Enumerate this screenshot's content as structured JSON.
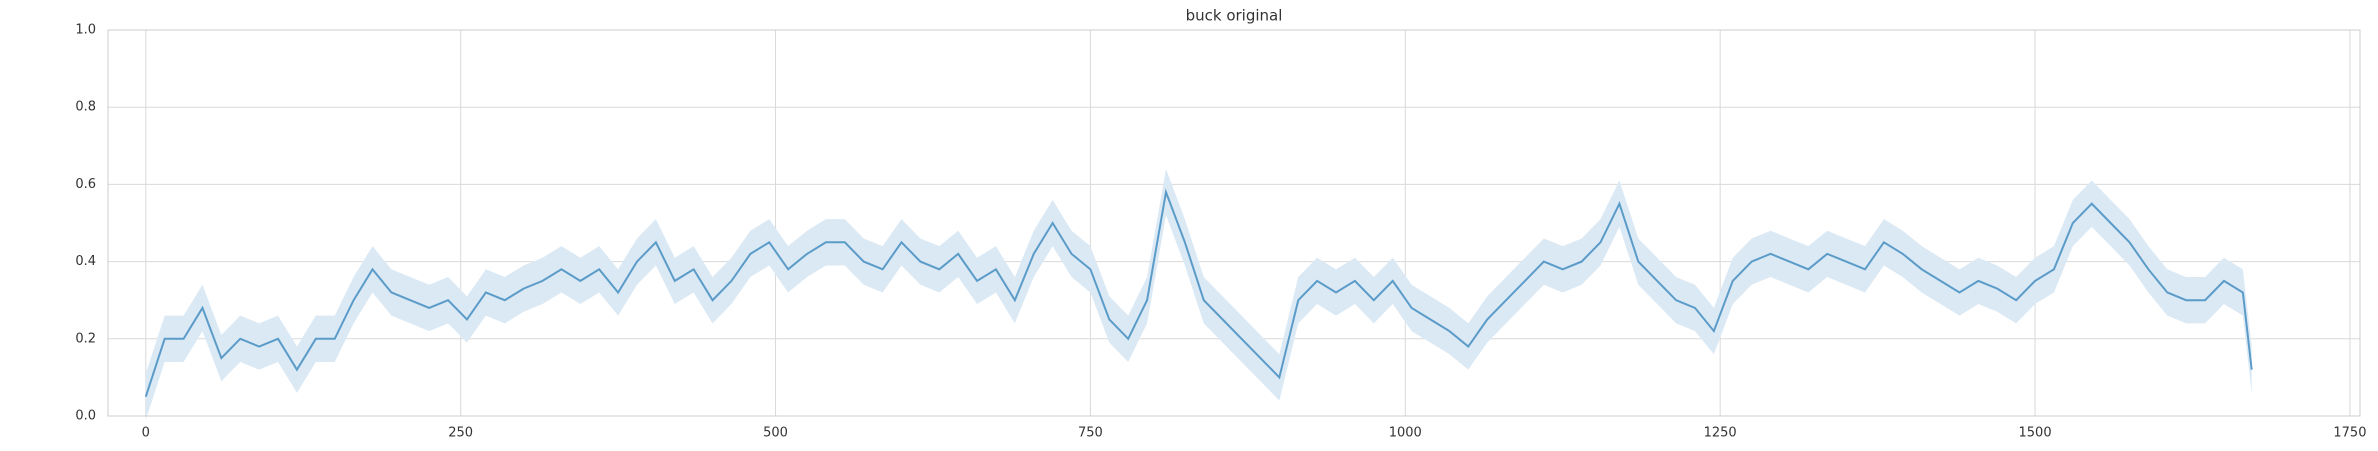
{
  "chart_data": {
    "type": "line",
    "title": "buck original",
    "x": [
      0,
      15,
      30,
      45,
      60,
      75,
      90,
      105,
      120,
      135,
      150,
      165,
      180,
      195,
      210,
      225,
      240,
      255,
      270,
      285,
      300,
      315,
      330,
      345,
      360,
      375,
      390,
      405,
      420,
      435,
      450,
      465,
      480,
      495,
      510,
      525,
      540,
      555,
      570,
      585,
      600,
      615,
      630,
      645,
      660,
      675,
      690,
      705,
      720,
      735,
      750,
      765,
      780,
      795,
      810,
      825,
      840,
      855,
      870,
      885,
      900,
      915,
      930,
      945,
      960,
      975,
      990,
      1005,
      1020,
      1035,
      1050,
      1065,
      1080,
      1095,
      1110,
      1125,
      1140,
      1155,
      1170,
      1185,
      1200,
      1215,
      1230,
      1245,
      1260,
      1275,
      1290,
      1305,
      1320,
      1335,
      1350,
      1365,
      1380,
      1395,
      1410,
      1425,
      1440,
      1455,
      1470,
      1485,
      1500,
      1515,
      1530,
      1545,
      1560,
      1575,
      1590,
      1605,
      1620,
      1635,
      1650,
      1665,
      1672
    ],
    "values": [
      0.05,
      0.2,
      0.2,
      0.28,
      0.15,
      0.2,
      0.18,
      0.2,
      0.12,
      0.2,
      0.2,
      0.3,
      0.38,
      0.32,
      0.3,
      0.28,
      0.3,
      0.25,
      0.32,
      0.3,
      0.33,
      0.35,
      0.38,
      0.35,
      0.38,
      0.32,
      0.4,
      0.45,
      0.35,
      0.38,
      0.3,
      0.35,
      0.42,
      0.45,
      0.38,
      0.42,
      0.45,
      0.45,
      0.4,
      0.38,
      0.45,
      0.4,
      0.38,
      0.42,
      0.35,
      0.38,
      0.3,
      0.42,
      0.5,
      0.42,
      0.38,
      0.25,
      0.2,
      0.3,
      0.58,
      0.45,
      0.3,
      0.25,
      0.2,
      0.15,
      0.1,
      0.3,
      0.35,
      0.32,
      0.35,
      0.3,
      0.35,
      0.28,
      0.25,
      0.22,
      0.18,
      0.25,
      0.3,
      0.35,
      0.4,
      0.38,
      0.4,
      0.45,
      0.55,
      0.4,
      0.35,
      0.3,
      0.28,
      0.22,
      0.35,
      0.4,
      0.42,
      0.4,
      0.38,
      0.42,
      0.4,
      0.38,
      0.45,
      0.42,
      0.38,
      0.35,
      0.32,
      0.35,
      0.33,
      0.3,
      0.35,
      0.38,
      0.5,
      0.55,
      0.5,
      0.45,
      0.38,
      0.32,
      0.3,
      0.3,
      0.35,
      0.32,
      0.12
    ],
    "error": 0.06,
    "color": "#5b9bc8",
    "band_color": "#dbe9f5",
    "xlim": [
      -30,
      1758
    ],
    "ylim": [
      0,
      1
    ],
    "xticks": [
      0,
      250,
      500,
      750,
      1000,
      1250,
      1500,
      1750
    ],
    "yticks": [
      {
        "value": 0,
        "label": "0.0"
      },
      {
        "value": 0.2,
        "label": "0.2"
      },
      {
        "value": 0.4,
        "label": "0.4"
      },
      {
        "value": 0.6,
        "label": "0.6"
      },
      {
        "value": 0.8,
        "label": "0.8"
      },
      {
        "value": 1,
        "label": "1.0"
      }
    ],
    "grid": true
  }
}
